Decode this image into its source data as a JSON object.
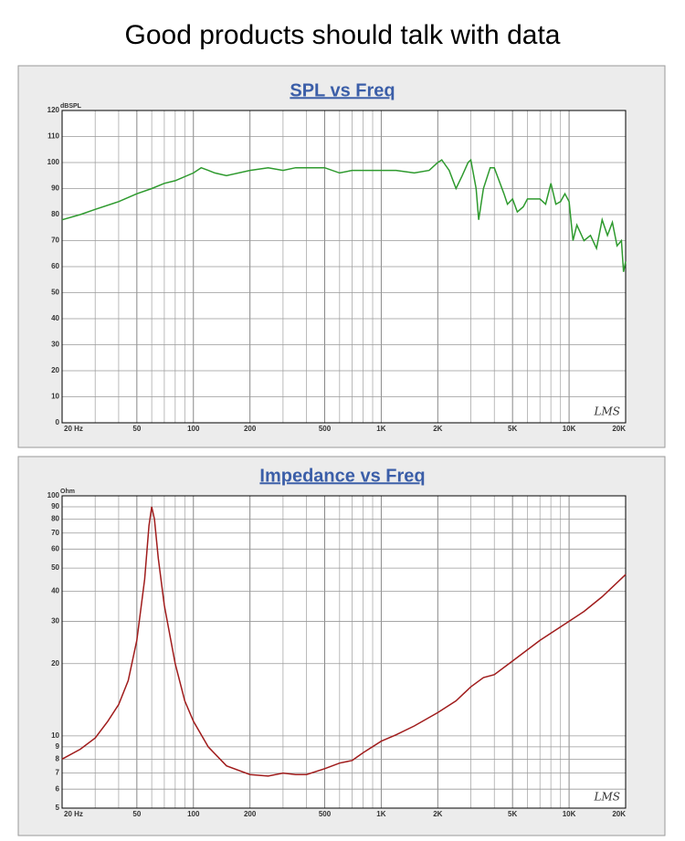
{
  "title": "Good products should talk with data",
  "chart_data": [
    {
      "type": "line",
      "title": "SPL vs Freq",
      "y_label": "dBSPL",
      "annotation": "LMS",
      "log_x": true,
      "log_y": false,
      "grid": true,
      "color": "#2e9a2e",
      "xlim": [
        20,
        20000
      ],
      "ylim": [
        0,
        120
      ],
      "xticks": [
        {
          "value": 20,
          "label": "20 Hz"
        },
        50,
        100,
        200,
        500,
        {
          "value": 1000,
          "label": "1K"
        },
        {
          "value": 2000,
          "label": "2K"
        },
        {
          "value": 5000,
          "label": "5K"
        },
        {
          "value": 10000,
          "label": "10K"
        },
        {
          "value": 20000,
          "label": "20K"
        }
      ],
      "xminor": [
        30,
        40,
        60,
        70,
        80,
        90,
        300,
        400,
        600,
        700,
        800,
        900,
        3000,
        4000,
        6000,
        7000,
        8000,
        9000
      ],
      "yticks": [
        0,
        10,
        20,
        30,
        40,
        50,
        60,
        70,
        80,
        90,
        100,
        110,
        120
      ],
      "x": [
        20,
        25,
        30,
        40,
        50,
        60,
        70,
        80,
        100,
        110,
        120,
        130,
        150,
        200,
        250,
        300,
        350,
        400,
        500,
        600,
        700,
        800,
        1000,
        1200,
        1500,
        1800,
        2000,
        2100,
        2300,
        2500,
        2700,
        2900,
        3000,
        3200,
        3300,
        3500,
        3800,
        4000,
        4500,
        4700,
        5000,
        5300,
        5700,
        6000,
        7000,
        7500,
        8000,
        8500,
        9000,
        9500,
        10000,
        10500,
        11000,
        12000,
        13000,
        14000,
        15000,
        16000,
        17000,
        18000,
        19000,
        19500,
        20000
      ],
      "values": [
        78,
        80,
        82,
        85,
        88,
        90,
        92,
        93,
        96,
        98,
        97,
        96,
        95,
        97,
        98,
        97,
        98,
        98,
        98,
        96,
        97,
        97,
        97,
        97,
        96,
        97,
        100,
        101,
        97,
        90,
        95,
        100,
        101,
        90,
        78,
        90,
        98,
        98,
        88,
        84,
        86,
        81,
        83,
        86,
        86,
        84,
        92,
        84,
        85,
        88,
        85,
        70,
        76,
        70,
        72,
        67,
        78,
        72,
        77,
        68,
        70,
        58,
        62
      ]
    },
    {
      "type": "line",
      "title": "Impedance vs Freq",
      "y_label": "Ohm",
      "annotation": "LMS",
      "log_x": true,
      "log_y": true,
      "grid": true,
      "color": "#a01c1c",
      "xlim": [
        20,
        20000
      ],
      "ylim": [
        5,
        100
      ],
      "xticks": [
        {
          "value": 20,
          "label": "20 Hz"
        },
        50,
        100,
        200,
        500,
        {
          "value": 1000,
          "label": "1K"
        },
        {
          "value": 2000,
          "label": "2K"
        },
        {
          "value": 5000,
          "label": "5K"
        },
        {
          "value": 10000,
          "label": "10K"
        },
        {
          "value": 20000,
          "label": "20K"
        }
      ],
      "xminor": [
        30,
        40,
        60,
        70,
        80,
        90,
        300,
        400,
        600,
        700,
        800,
        900,
        3000,
        4000,
        6000,
        7000,
        8000,
        9000
      ],
      "yticks": [
        5,
        6,
        7,
        8,
        9,
        10,
        20,
        30,
        40,
        50,
        60,
        70,
        80,
        90,
        100
      ],
      "x": [
        20,
        25,
        30,
        35,
        40,
        45,
        50,
        55,
        58,
        60,
        62,
        65,
        70,
        80,
        90,
        100,
        120,
        150,
        200,
        250,
        300,
        350,
        400,
        500,
        600,
        700,
        800,
        1000,
        1200,
        1500,
        2000,
        2500,
        3000,
        3500,
        4000,
        5000,
        7000,
        10000,
        12000,
        15000,
        20000
      ],
      "values": [
        8,
        8.8,
        9.8,
        11.5,
        13.5,
        17,
        25,
        45,
        75,
        90,
        80,
        55,
        35,
        20,
        14,
        11.5,
        9,
        7.5,
        6.9,
        6.8,
        7,
        6.9,
        6.9,
        7.3,
        7.7,
        7.9,
        8.5,
        9.5,
        10.1,
        11,
        12.5,
        14,
        16,
        17.5,
        18,
        20.5,
        25,
        30,
        33,
        38,
        47
      ]
    }
  ]
}
